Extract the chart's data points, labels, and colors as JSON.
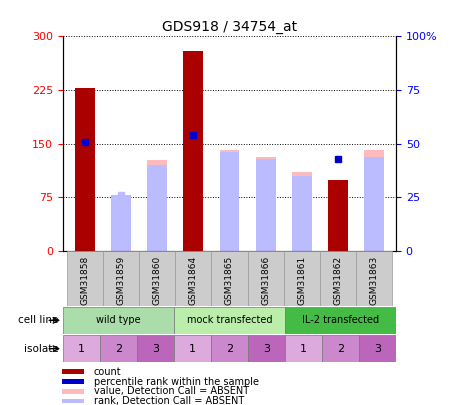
{
  "title": "GDS918 / 34754_at",
  "samples": [
    "GSM31858",
    "GSM31859",
    "GSM31860",
    "GSM31864",
    "GSM31865",
    "GSM31866",
    "GSM31861",
    "GSM31862",
    "GSM31863"
  ],
  "count_values": [
    228,
    0,
    0,
    280,
    0,
    0,
    0,
    100,
    0
  ],
  "value_absent": [
    0,
    63,
    128,
    0,
    141,
    131,
    111,
    0,
    141
  ],
  "rank_absent_pct": [
    0,
    26,
    40,
    0,
    46,
    43,
    35,
    0,
    44
  ],
  "percentile_rank_pct": [
    51,
    0,
    0,
    54,
    0,
    0,
    0,
    43,
    0
  ],
  "percentile_rank_absent_pct": [
    0,
    26,
    0,
    0,
    0,
    0,
    0,
    0,
    0
  ],
  "ylim_left": [
    0,
    300
  ],
  "ylim_right": [
    0,
    100
  ],
  "yticks_left": [
    0,
    75,
    150,
    225,
    300
  ],
  "yticks_right": [
    0,
    25,
    50,
    75,
    100
  ],
  "ytick_labels_left": [
    "0",
    "75",
    "150",
    "225",
    "300"
  ],
  "ytick_labels_right": [
    "0",
    "25",
    "50",
    "75",
    "100%"
  ],
  "cell_line_groups": [
    {
      "label": "wild type",
      "span": [
        0,
        3
      ],
      "color": "#aaddaa"
    },
    {
      "label": "mock transfected",
      "span": [
        3,
        6
      ],
      "color": "#bbeeaa"
    },
    {
      "label": "IL-2 transfected",
      "span": [
        6,
        9
      ],
      "color": "#44bb44"
    }
  ],
  "isolate_values": [
    "1",
    "2",
    "3",
    "1",
    "2",
    "3",
    "1",
    "2",
    "3"
  ],
  "isolate_colors": [
    "#ddaadd",
    "#cc88cc",
    "#bb66bb",
    "#ddaadd",
    "#cc88cc",
    "#bb66bb",
    "#ddaadd",
    "#cc88cc",
    "#bb66bb"
  ],
  "bar_width": 0.55,
  "count_color": "#aa0000",
  "value_absent_color": "#ffbbbb",
  "rank_absent_color": "#bbbbff",
  "percentile_color": "#0000cc",
  "legend_items": [
    {
      "label": "count",
      "color": "#aa0000"
    },
    {
      "label": "percentile rank within the sample",
      "color": "#0000cc"
    },
    {
      "label": "value, Detection Call = ABSENT",
      "color": "#ffbbbb"
    },
    {
      "label": "rank, Detection Call = ABSENT",
      "color": "#bbbbff"
    }
  ]
}
